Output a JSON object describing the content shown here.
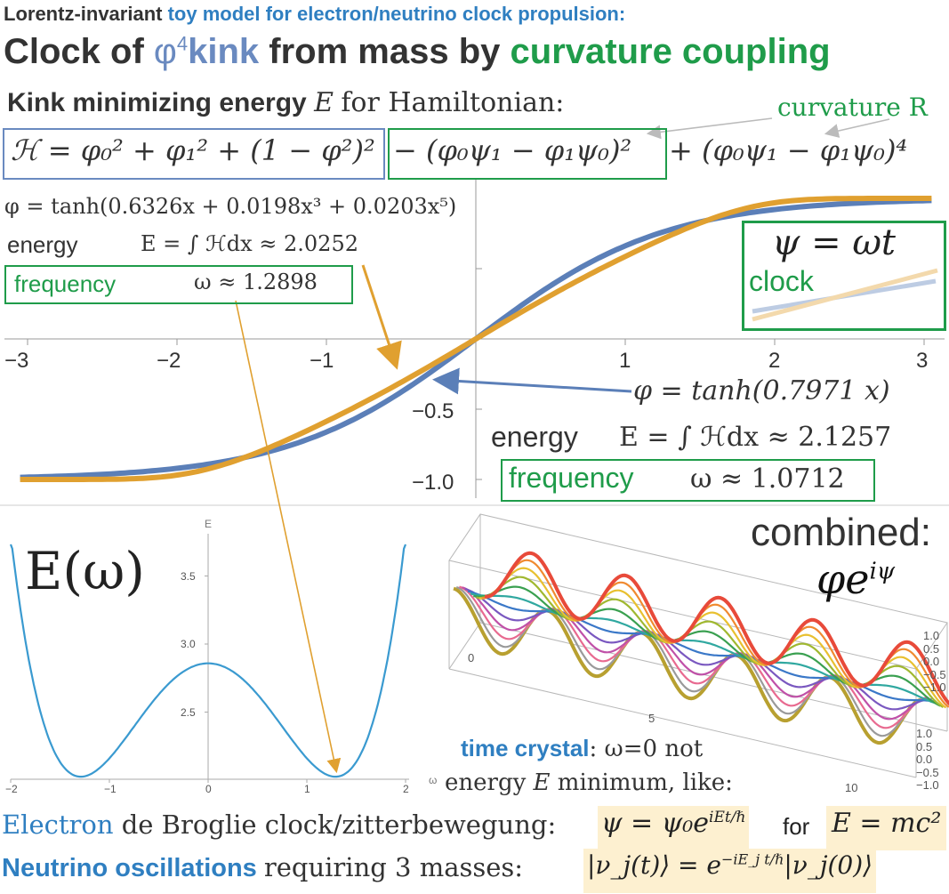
{
  "header": {
    "line1_bold": "Lorentz-invariant",
    "line1_blue": "toy model for electron/neutrino clock propulsion:",
    "title_part1": "Clock of",
    "title_phi": "φ",
    "title_sup": "4",
    "title_kink": "kink",
    "title_part2": "from mass by",
    "title_green": "curvature coupling"
  },
  "kink_section": {
    "heading_bold": "Kink minimizing energy",
    "heading_E": "E",
    "heading_rest": "for Hamiltonian:",
    "curvature_label": "curvature R",
    "hamiltonian_part1": "ℋ = φ₀² + φ₁² + (1 − φ²)²",
    "hamiltonian_part2": "− (φ₀ψ₁ − φ₁ψ₀)²",
    "hamiltonian_part3": "+ (φ₀ψ₁ − φ₁ψ₀)⁴"
  },
  "solution_curved": {
    "phi": "φ = tanh(0.6326x + 0.0198x³ + 0.0203x⁵)",
    "energy_label": "energy",
    "energy_value": "E = ∫ ℋdx ≈ 2.0252",
    "frequency_label": "frequency",
    "frequency_value": "ω ≈ 1.2898"
  },
  "solution_flat": {
    "phi": "φ = tanh(0.7971 x)",
    "energy_label": "energy",
    "energy_value": "E = ∫ ℋdx ≈ 2.1257",
    "frequency_label": "frequency",
    "frequency_value": "ω ≈ 1.0712"
  },
  "inset": {
    "formula": "ψ = ωt",
    "label": "clock"
  },
  "kink_plot": {
    "x_ticks": [
      "−3",
      "−2",
      "−1",
      "1",
      "2",
      "3"
    ],
    "y_ticks": [
      "−0.5",
      "−1.0"
    ]
  },
  "energy_plot": {
    "title": "E(ω)",
    "axis_label_y": "E",
    "axis_label_x": "ω",
    "y_ticks": [
      "3.5",
      "3.0",
      "2.5"
    ],
    "x_ticks": [
      "−2",
      "−1",
      "0",
      "1",
      "2"
    ]
  },
  "combined": {
    "label": "combined:",
    "formula": "φe",
    "formula_sup": "iψ",
    "z_ticks_top": [
      "1.0",
      "0.5",
      "0.0",
      "−0.5",
      "−1.0"
    ],
    "z_ticks_bottom": [
      "1.0",
      "0.5",
      "0.0",
      "−0.5",
      "−1.0"
    ],
    "t_ticks": [
      "0",
      "5",
      "10"
    ]
  },
  "time_crystal": {
    "bold": "time crystal",
    "rest": ": ω=0 not",
    "line2_pre": "energy",
    "line2_E": "E",
    "line2_post": "minimum, like:"
  },
  "footer": {
    "electron_blue": "Electron",
    "electron_rest": "de Broglie clock/zitterbewegung:",
    "electron_formula": "ψ = ψ₀e",
    "electron_formula_sup": "iEt/ℏ",
    "electron_for": "for",
    "electron_mass": "E = mc²",
    "neutrino_blue": "Neutrino oscillations",
    "neutrino_rest": "requiring 3 masses:",
    "neutrino_formula": "|ν_j(t)⟩ = e",
    "neutrino_formula_sup": "−iE_j t/ℏ",
    "neutrino_formula_end": "|ν_j(0)⟩"
  },
  "colors": {
    "blue_curve": "#5b7fb8",
    "orange_curve": "#e0a030",
    "title_blue": "#2f7fc1",
    "green": "#1f9c4a"
  }
}
